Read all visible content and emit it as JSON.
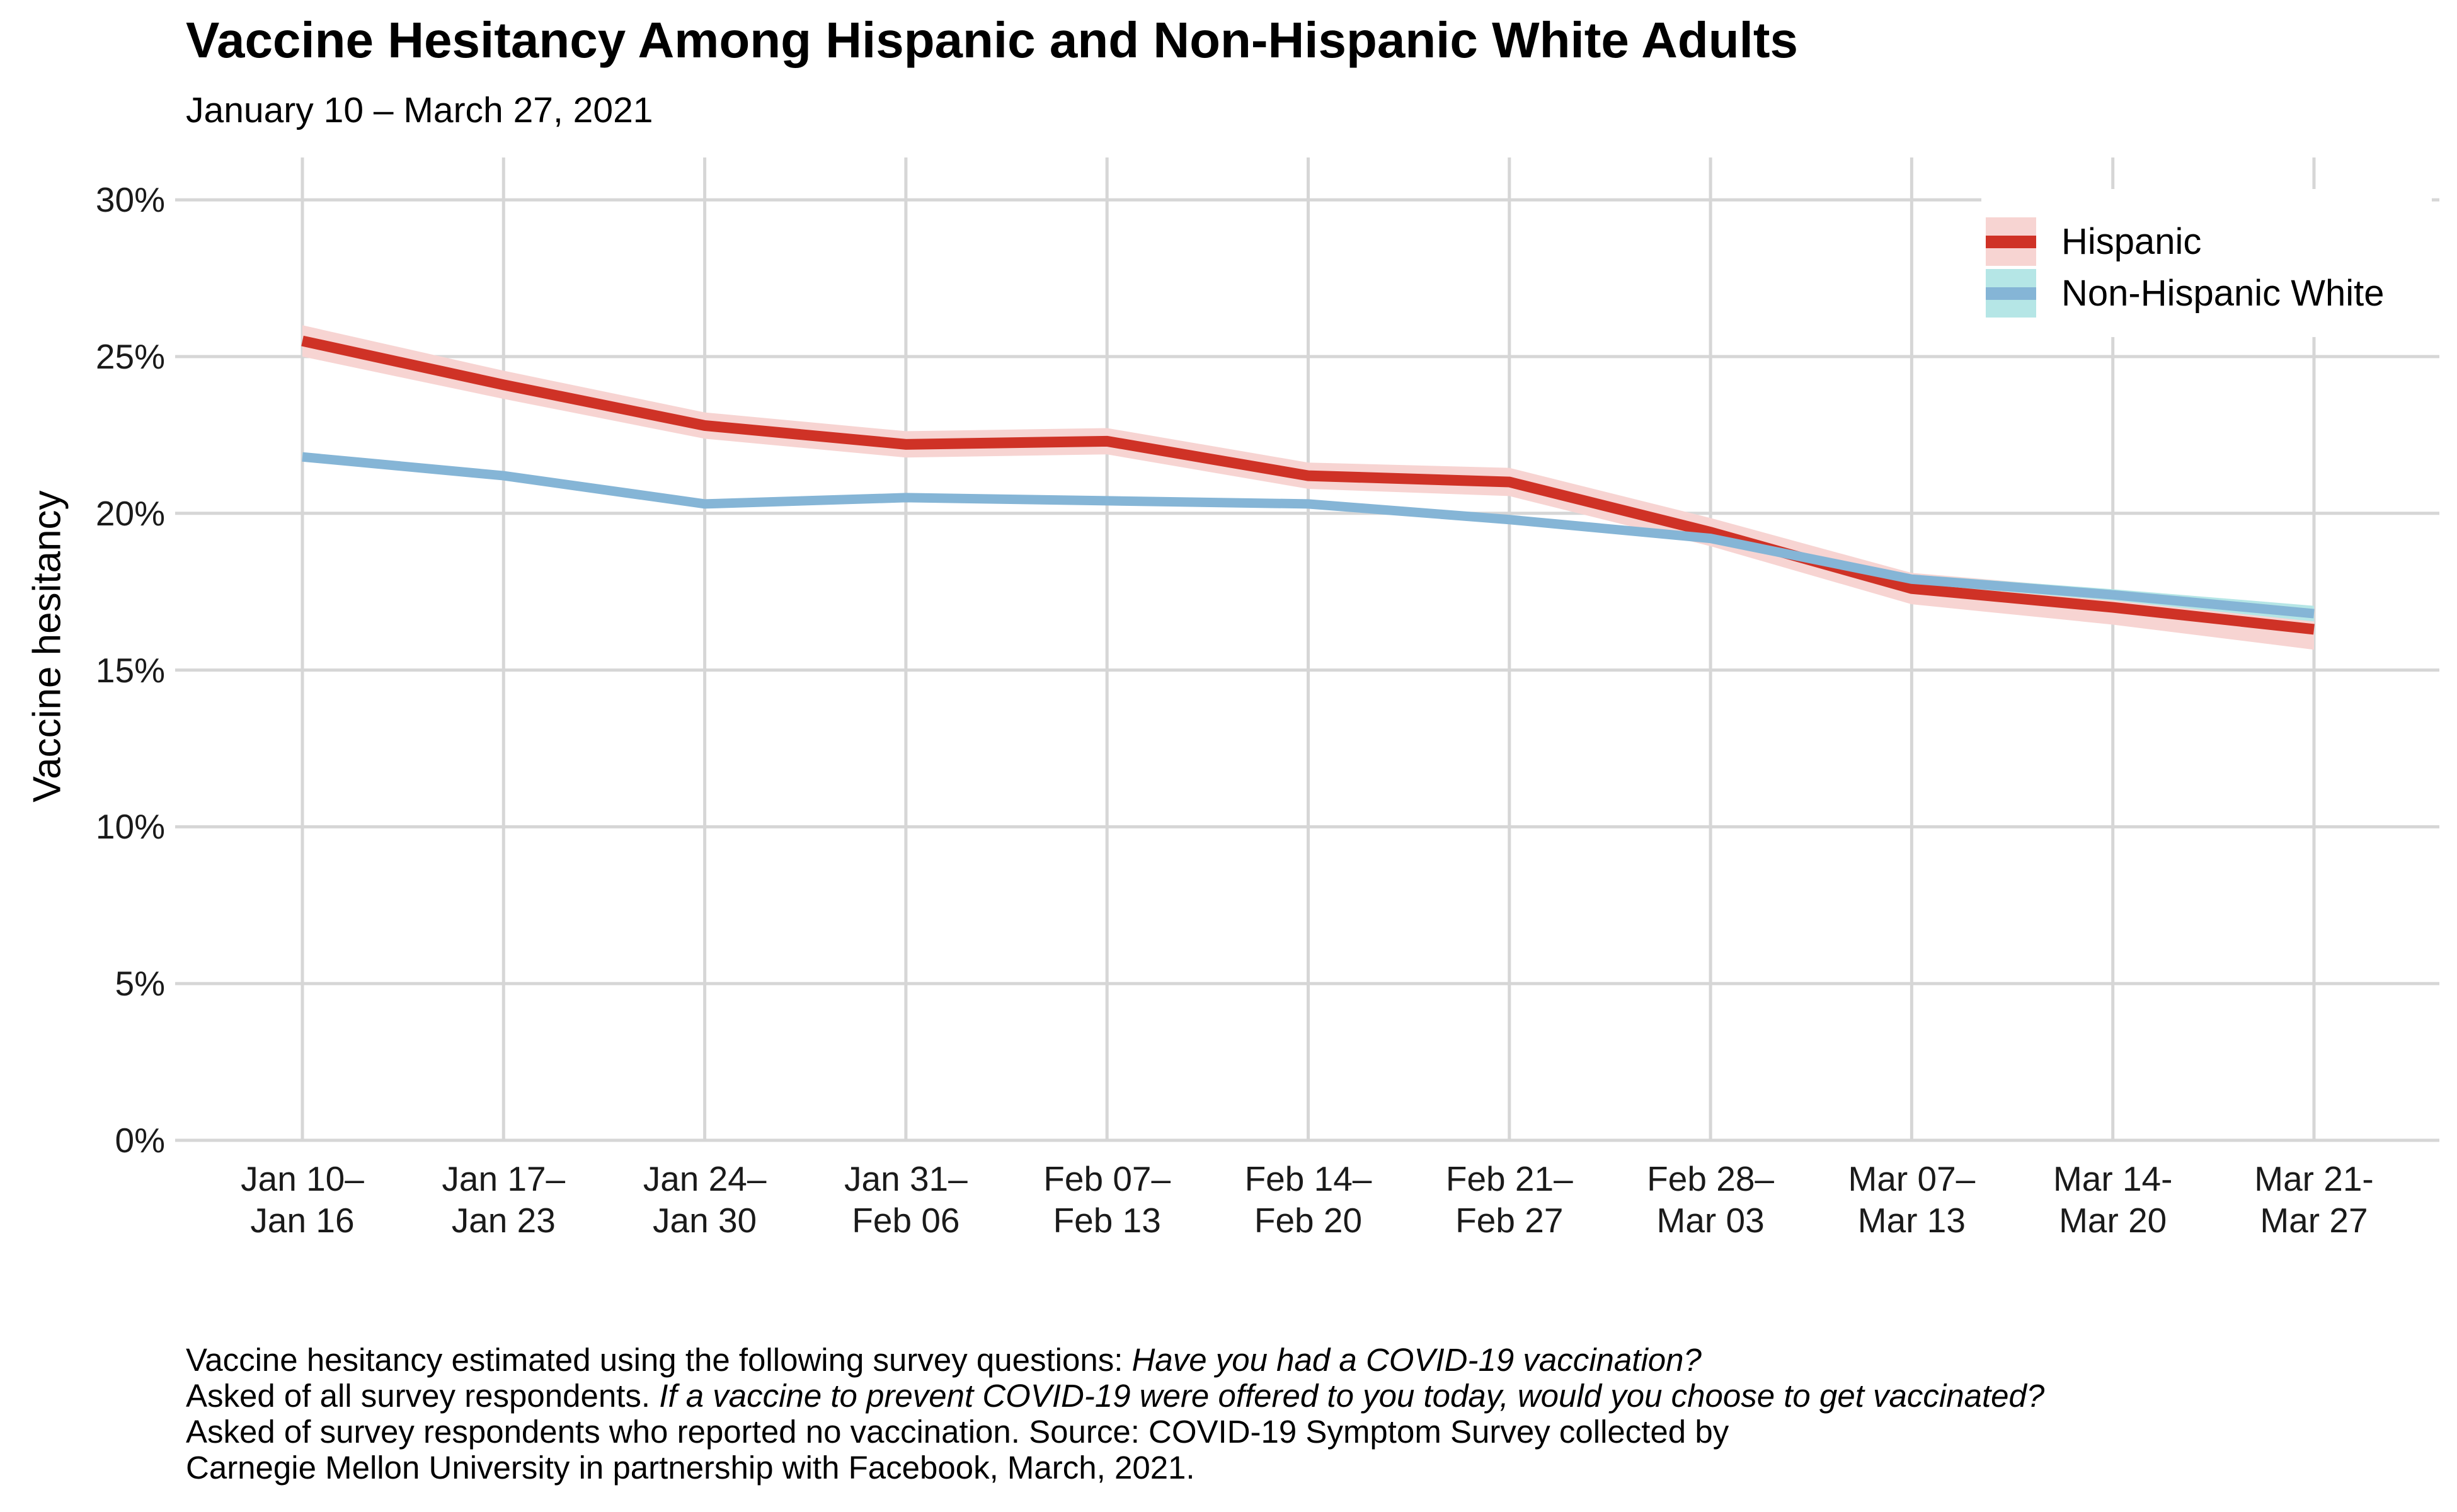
{
  "header": {
    "title": "Vaccine Hesitancy Among Hispanic and Non-Hispanic White Adults",
    "subtitle": "January 10 – March 27, 2021"
  },
  "y_axis": {
    "label": "Vaccine hesitancy",
    "tick_values": [
      0,
      5,
      10,
      15,
      20,
      25,
      30
    ],
    "tick_labels": [
      "0%",
      "5%",
      "10%",
      "15%",
      "20%",
      "25%",
      "30%"
    ]
  },
  "x_axis": {
    "ticks": [
      {
        "line1": "Jan 10–",
        "line2": "Jan 16"
      },
      {
        "line1": "Jan 17–",
        "line2": "Jan 23"
      },
      {
        "line1": "Jan 24–",
        "line2": "Jan 30"
      },
      {
        "line1": "Jan 31–",
        "line2": "Feb 06"
      },
      {
        "line1": "Feb 07–",
        "line2": "Feb 13"
      },
      {
        "line1": "Feb 14–",
        "line2": "Feb 20"
      },
      {
        "line1": "Feb 21–",
        "line2": "Feb 27"
      },
      {
        "line1": "Feb 28–",
        "line2": "Mar 03"
      },
      {
        "line1": "Mar 07–",
        "line2": "Mar 13"
      },
      {
        "line1": "Mar 14-",
        "line2": "Mar 20"
      },
      {
        "line1": "Mar 21-",
        "line2": "Mar 27"
      }
    ]
  },
  "legend": {
    "items": [
      {
        "label": "Hispanic",
        "line_color": "#cf3226",
        "band_color": "#f7d4d2"
      },
      {
        "label": "Non-Hispanic White",
        "line_color": "#85b5d6",
        "band_color": "#b5e6e6"
      }
    ]
  },
  "caption": {
    "line1_normal": "Vaccine hesitancy estimated using the following survey questions: ",
    "line1_italic": "Have you had a COVID-19 vaccination?",
    "line2_normal": "Asked of all survey respondents. ",
    "line2_italic": "If a vaccine to prevent COVID-19 were offered to you today, would you choose to get vaccinated?",
    "line3": "Asked of survey respondents who reported no vaccination. Source: COVID-19 Symptom Survey collected by",
    "line4": "Carnegie Mellon University in partnership with Facebook, March, 2021."
  },
  "colors": {
    "gridline": "#d6d6d6",
    "background": "#ffffff",
    "hispanic_line": "#cf3226",
    "hispanic_band": "#f7d4d2",
    "white_line": "#85b5d6",
    "white_band": "#b5e6e6"
  },
  "chart_data": {
    "type": "line",
    "title": "Vaccine Hesitancy Among Hispanic and Non-Hispanic White Adults",
    "subtitle": "January 10 – March 27, 2021",
    "xlabel": "",
    "ylabel": "Vaccine hesitancy",
    "ylim": [
      0,
      30
    ],
    "grid": true,
    "legend_position": "top-right",
    "categories": [
      "Jan 10–Jan 16",
      "Jan 17–Jan 23",
      "Jan 24–Jan 30",
      "Jan 31–Feb 06",
      "Feb 07–Feb 13",
      "Feb 14–Feb 20",
      "Feb 21–Feb 27",
      "Feb 28–Mar 03",
      "Mar 07–Mar 13",
      "Mar 14-Mar 20",
      "Mar 21-Mar 27"
    ],
    "series": [
      {
        "name": "Hispanic",
        "values": [
          25.5,
          24.1,
          22.8,
          22.2,
          22.3,
          21.2,
          21.0,
          19.4,
          17.6,
          17.0,
          16.3
        ],
        "ci_halfwidth": [
          0.5,
          0.45,
          0.42,
          0.42,
          0.42,
          0.42,
          0.45,
          0.45,
          0.5,
          0.55,
          0.65
        ],
        "color": "#cf3226",
        "band_color": "#f7d4d2",
        "line_width": 17
      },
      {
        "name": "Non-Hispanic White",
        "values": [
          21.8,
          21.2,
          20.3,
          20.5,
          20.4,
          20.3,
          19.8,
          19.2,
          17.9,
          17.4,
          16.8
        ],
        "ci_halfwidth": [
          0.12,
          0.1,
          0.1,
          0.1,
          0.1,
          0.1,
          0.12,
          0.12,
          0.15,
          0.18,
          0.25
        ],
        "color": "#85b5d6",
        "band_color": "#b5e6e6",
        "line_width": 15
      }
    ]
  }
}
